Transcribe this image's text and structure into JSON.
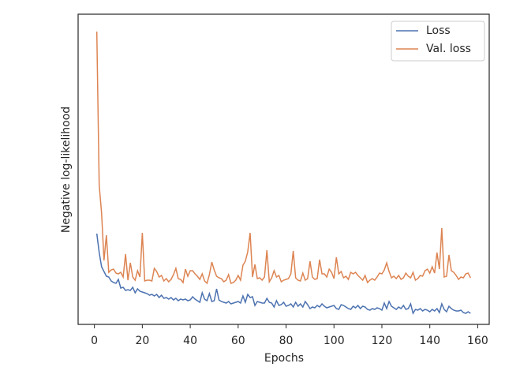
{
  "chart_data": {
    "type": "line",
    "xlabel": "Epochs",
    "ylabel": "Negative log-likelihood",
    "x": [
      1,
      2,
      3,
      4,
      5,
      6,
      7,
      8,
      9,
      10,
      11,
      12,
      13,
      14,
      15,
      16,
      17,
      18,
      19,
      20,
      21,
      22,
      23,
      24,
      25,
      26,
      27,
      28,
      29,
      30,
      31,
      32,
      33,
      34,
      35,
      36,
      37,
      38,
      39,
      40,
      41,
      42,
      43,
      44,
      45,
      46,
      47,
      48,
      49,
      50,
      51,
      52,
      53,
      54,
      55,
      56,
      57,
      58,
      59,
      60,
      61,
      62,
      63,
      64,
      65,
      66,
      67,
      68,
      69,
      70,
      71,
      72,
      73,
      74,
      75,
      76,
      77,
      78,
      79,
      80,
      81,
      82,
      83,
      84,
      85,
      86,
      87,
      88,
      89,
      90,
      91,
      92,
      93,
      94,
      95,
      96,
      97,
      98,
      99,
      100,
      101,
      102,
      103,
      104,
      105,
      106,
      107,
      108,
      109,
      110,
      111,
      112,
      113,
      114,
      115,
      116,
      117,
      118,
      119,
      120,
      121,
      122,
      123,
      124,
      125,
      126,
      127,
      128,
      129,
      130,
      131,
      132,
      133,
      134,
      135,
      136,
      137,
      138,
      139,
      140,
      141,
      142,
      143,
      144,
      145,
      146,
      147,
      148,
      149,
      150,
      151,
      152,
      153,
      154,
      155,
      156,
      157
    ],
    "series": [
      {
        "name": "Loss",
        "color": "#4c72b0",
        "values": [
          115,
          91,
          73,
          67,
          61,
          60,
          55,
          53,
          52,
          57,
          46,
          47,
          43,
          44,
          43,
          47,
          40,
          45,
          42,
          41,
          40,
          39,
          37,
          38,
          36,
          38,
          34,
          37,
          33,
          34,
          32,
          34,
          31,
          33,
          30,
          32,
          31,
          32,
          30,
          31,
          35,
          32,
          30,
          28,
          40,
          32,
          30,
          39,
          29,
          30,
          45,
          31,
          29,
          28,
          27,
          29,
          26,
          27,
          28,
          29,
          27,
          36,
          28,
          38,
          34,
          35,
          24,
          29,
          28,
          27,
          27,
          33,
          28,
          27,
          22,
          30,
          24,
          25,
          28,
          23,
          24,
          26,
          22,
          28,
          23,
          26,
          22,
          29,
          25,
          20,
          22,
          21,
          24,
          22,
          26,
          23,
          21,
          22,
          23,
          24,
          20,
          19,
          25,
          24,
          22,
          20,
          19,
          23,
          21,
          24,
          20,
          23,
          22,
          19,
          18,
          20,
          19,
          21,
          20,
          18,
          27,
          20,
          29,
          23,
          21,
          19,
          22,
          20,
          24,
          19,
          20,
          26,
          14,
          19,
          18,
          20,
          17,
          19,
          18,
          16,
          19,
          17,
          20,
          15,
          26,
          19,
          16,
          23,
          20,
          18,
          17,
          17,
          18,
          15,
          14,
          16,
          14
        ]
      },
      {
        "name": "Val. loss",
        "color": "#dd8452",
        "values": [
          371,
          176,
          141,
          81,
          113,
          66,
          69,
          70,
          65,
          64,
          66,
          60,
          89,
          56,
          78,
          60,
          56,
          68,
          60,
          116,
          55,
          56,
          56,
          55,
          71,
          67,
          60,
          62,
          55,
          58,
          54,
          57,
          63,
          71,
          58,
          57,
          53,
          70,
          61,
          68,
          68,
          64,
          61,
          57,
          64,
          55,
          52,
          63,
          79,
          69,
          61,
          59,
          58,
          54,
          56,
          63,
          52,
          53,
          56,
          62,
          56,
          75,
          80,
          92,
          116,
          60,
          76,
          58,
          59,
          56,
          60,
          94,
          54,
          59,
          68,
          60,
          62,
          54,
          56,
          57,
          58,
          64,
          93,
          59,
          56,
          55,
          65,
          56,
          58,
          80,
          60,
          57,
          58,
          82,
          64,
          64,
          60,
          70,
          66,
          58,
          85,
          64,
          67,
          59,
          61,
          57,
          66,
          64,
          66,
          62,
          59,
          56,
          62,
          53,
          56,
          58,
          56,
          60,
          65,
          64,
          69,
          78,
          67,
          59,
          61,
          58,
          62,
          57,
          59,
          65,
          61,
          59,
          66,
          56,
          58,
          62,
          61,
          68,
          70,
          65,
          73,
          65,
          91,
          70,
          122,
          60,
          61,
          88,
          68,
          66,
          62,
          57,
          60,
          59,
          64,
          65,
          59
        ]
      }
    ],
    "xlim": [
      -6.8,
      164.8
    ],
    "xticks": [
      0,
      20,
      40,
      60,
      80,
      100,
      120,
      140,
      160
    ],
    "ylim": [
      0,
      393
    ],
    "legend": "upper right"
  }
}
